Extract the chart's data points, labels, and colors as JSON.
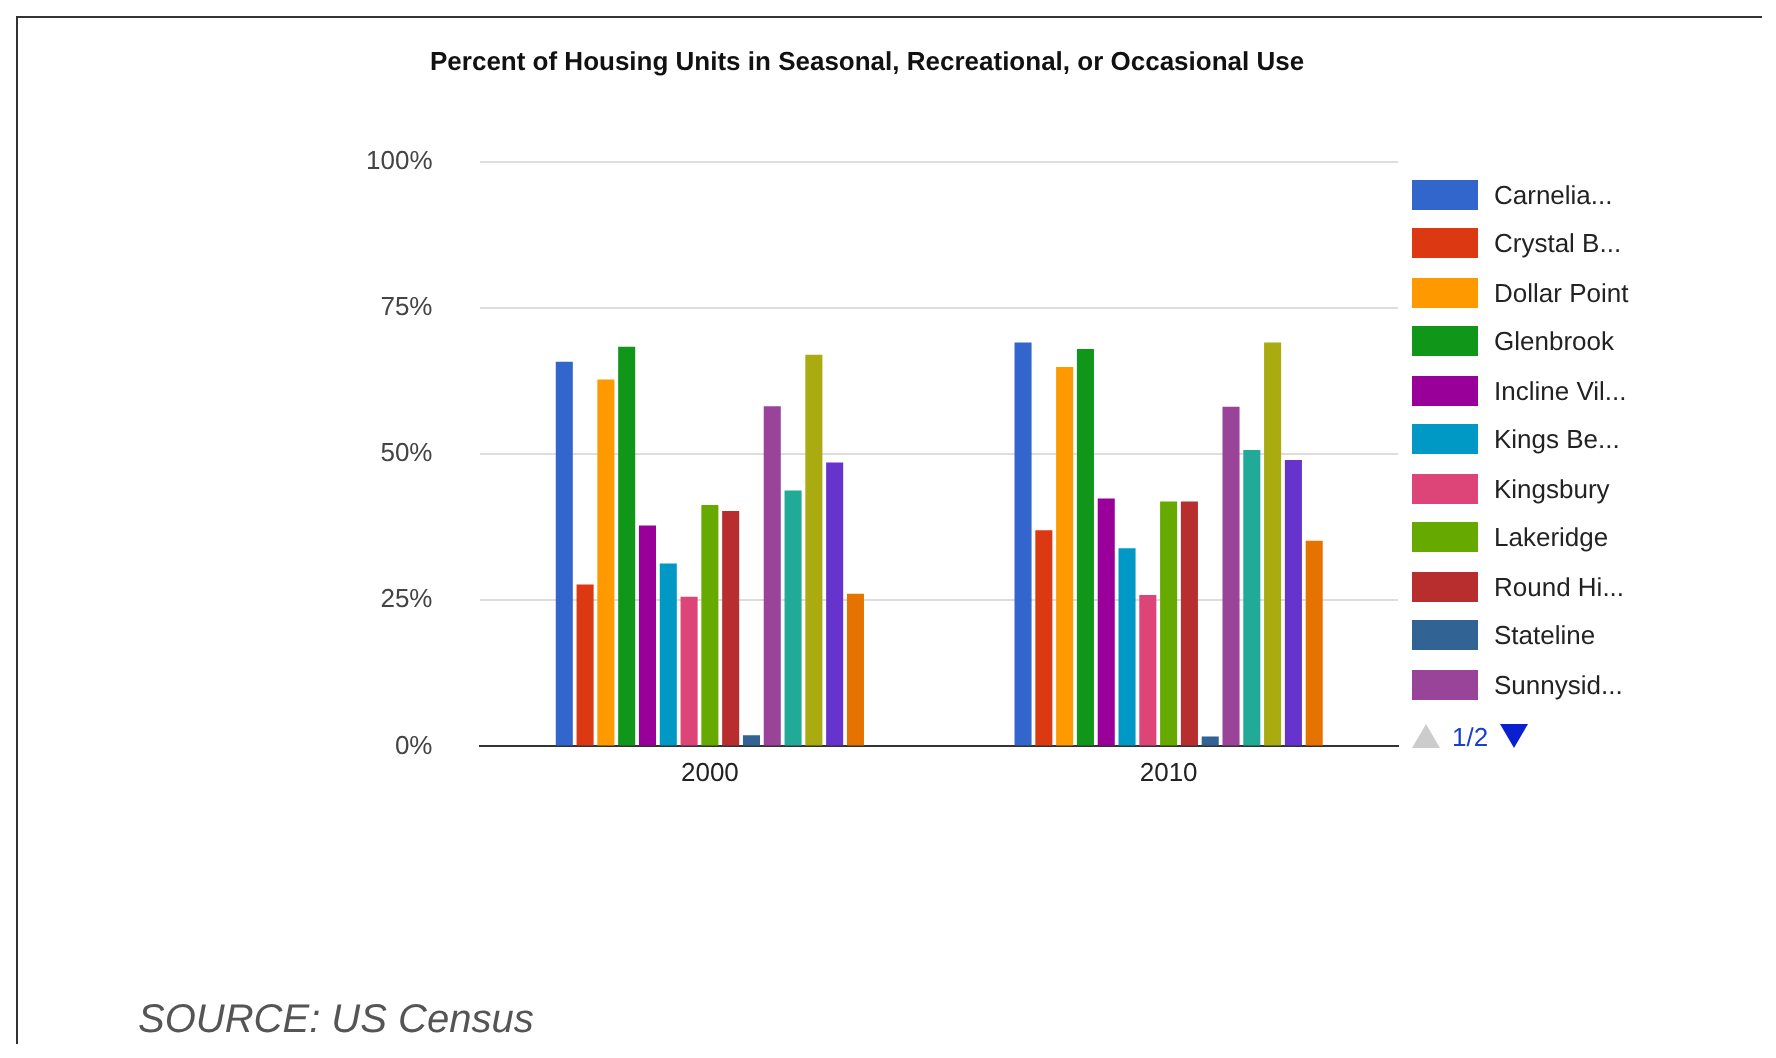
{
  "chart_data": {
    "type": "bar",
    "title": "Percent of Housing Units in Seasonal, Recreational, or Occasional Use",
    "categories": [
      "2000",
      "2010"
    ],
    "ylim": [
      0,
      100
    ],
    "yticks": [
      {
        "value": 0,
        "label": "0%"
      },
      {
        "value": 25,
        "label": "25%"
      },
      {
        "value": 50,
        "label": "50%"
      },
      {
        "value": 75,
        "label": "75%"
      },
      {
        "value": 100,
        "label": "100%"
      }
    ],
    "grid": "y",
    "legend": "right",
    "series": [
      {
        "name": "Carnelia...",
        "color": "#3366cc",
        "values": [
          65.8,
          69.1
        ]
      },
      {
        "name": "Crystal B...",
        "color": "#dc3912",
        "values": [
          27.7,
          37.0
        ]
      },
      {
        "name": "Dollar Point",
        "color": "#ff9900",
        "values": [
          62.8,
          64.9
        ]
      },
      {
        "name": "Glenbrook",
        "color": "#109618",
        "values": [
          68.4,
          68.0
        ]
      },
      {
        "name": "Incline Vil...",
        "color": "#990099",
        "values": [
          37.8,
          42.4
        ]
      },
      {
        "name": "Kings Be...",
        "color": "#0099c6",
        "values": [
          31.3,
          33.9
        ]
      },
      {
        "name": "Kingsbury",
        "color": "#dd4477",
        "values": [
          25.6,
          25.9
        ]
      },
      {
        "name": "Lakeridge",
        "color": "#66aa00",
        "values": [
          41.3,
          41.9
        ]
      },
      {
        "name": "Round Hi...",
        "color": "#b82e2e",
        "values": [
          40.3,
          41.9
        ]
      },
      {
        "name": "Stateline",
        "color": "#316395",
        "values": [
          1.9,
          1.7
        ]
      },
      {
        "name": "Sunnysid...",
        "color": "#994499",
        "values": [
          58.2,
          58.1
        ]
      },
      {
        "color": "#22aa99",
        "values": [
          43.8,
          50.7
        ]
      },
      {
        "color": "#aaaa11",
        "values": [
          67.0,
          69.1
        ]
      },
      {
        "color": "#6633cc",
        "values": [
          48.6,
          49.0
        ]
      },
      {
        "color": "#e67300",
        "values": [
          26.1,
          35.2
        ]
      }
    ],
    "annotations": [
      "1/2",
      "SOURCE: US Census"
    ]
  }
}
